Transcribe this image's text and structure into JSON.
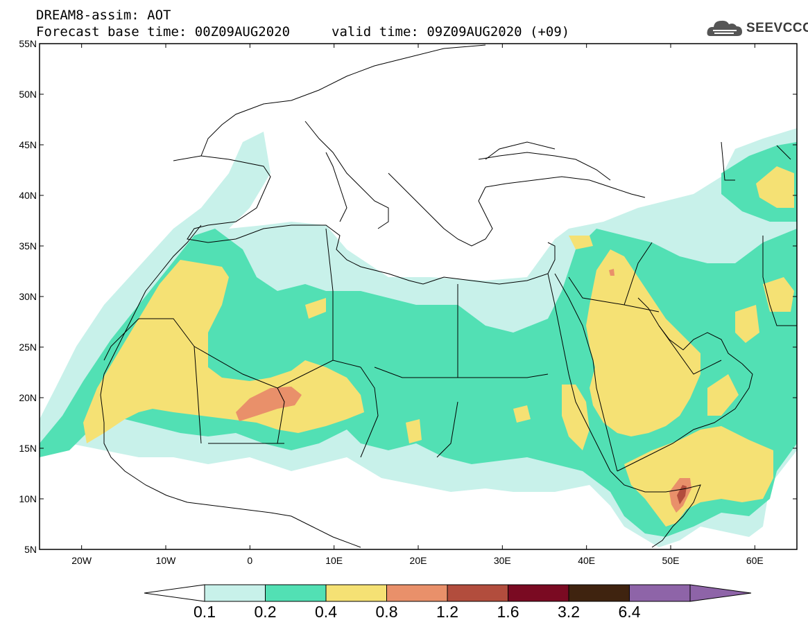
{
  "header": {
    "model_line": "DREAM8-assim: AOT",
    "base_time": "Forecast base time: 00Z09AUG2020",
    "valid_time": "valid time: 09Z09AUG2020 (+09)",
    "logo_text": "SEEVCCC"
  },
  "axes": {
    "lat_labels": [
      "55N",
      "50N",
      "45N",
      "40N",
      "35N",
      "30N",
      "25N",
      "20N",
      "15N",
      "10N",
      "5N"
    ],
    "lon_labels": [
      "20W",
      "10W",
      "0",
      "10E",
      "20E",
      "30E",
      "40E",
      "50E",
      "60E"
    ]
  },
  "colorbar": {
    "levels": [
      "0.1",
      "0.2",
      "0.4",
      "0.8",
      "1.2",
      "1.6",
      "3.2",
      "6.4"
    ],
    "colors": [
      "#ffffff",
      "#c8f1ea",
      "#52e0b4",
      "#f5e174",
      "#e9906a",
      "#b24d3d",
      "#7a0a22",
      "#3f230f",
      "#8e64a8"
    ]
  }
}
